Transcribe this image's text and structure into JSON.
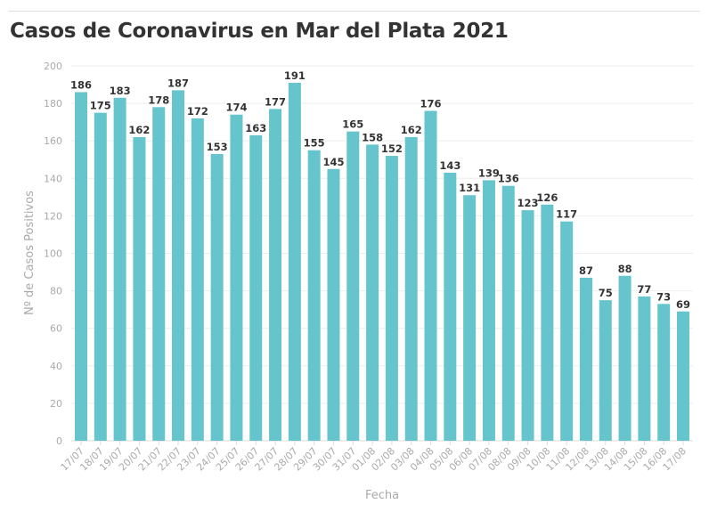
{
  "chart_data": {
    "type": "bar",
    "title": "Casos de Coronavirus en Mar del Plata 2021",
    "xlabel": "Fecha",
    "ylabel": "Nº de Casos Positivos",
    "ylim": [
      0,
      200
    ],
    "yticks": [
      0,
      20,
      40,
      60,
      80,
      100,
      120,
      140,
      160,
      180,
      200
    ],
    "grid": true,
    "bar_color": "#66c4cc",
    "categories": [
      "17/07",
      "18/07",
      "19/07",
      "20/07",
      "21/07",
      "22/07",
      "23/07",
      "24/07",
      "25/07",
      "26/07",
      "27/07",
      "28/07",
      "29/07",
      "30/07",
      "31/07",
      "01/08",
      "02/08",
      "03/08",
      "04/08",
      "05/08",
      "06/08",
      "07/08",
      "08/08",
      "09/08",
      "10/08",
      "11/08",
      "12/08",
      "13/08",
      "14/08",
      "15/08",
      "16/08",
      "17/08"
    ],
    "values": [
      186,
      175,
      183,
      162,
      178,
      187,
      172,
      153,
      174,
      163,
      177,
      191,
      155,
      145,
      165,
      158,
      152,
      162,
      176,
      143,
      131,
      139,
      136,
      123,
      126,
      117,
      87,
      75,
      88,
      77,
      73,
      69
    ]
  }
}
